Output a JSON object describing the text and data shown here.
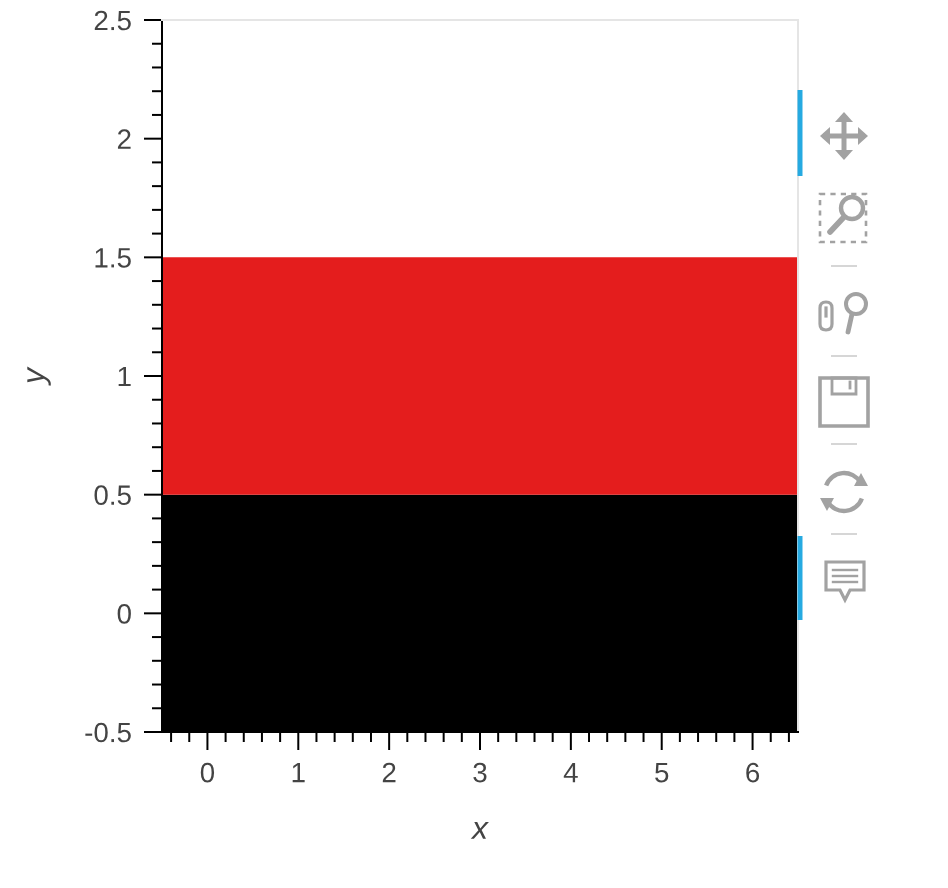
{
  "chart_data": {
    "type": "bar",
    "orientation": "horizontal",
    "x": [
      0,
      1
    ],
    "base": [
      -0.5,
      -0.5
    ],
    "values": [
      7,
      7
    ],
    "colors": [
      "#000000",
      "#e41d1d"
    ],
    "xlabel": "x",
    "ylabel": "y",
    "xlim": [
      -0.5,
      6.5
    ],
    "ylim": [
      -0.5,
      2.5
    ],
    "xticks": [
      0,
      1,
      2,
      3,
      4,
      5,
      6
    ],
    "yticks": [
      -0.5,
      0,
      0.5,
      1,
      1.5,
      2,
      2.5
    ]
  }
}
